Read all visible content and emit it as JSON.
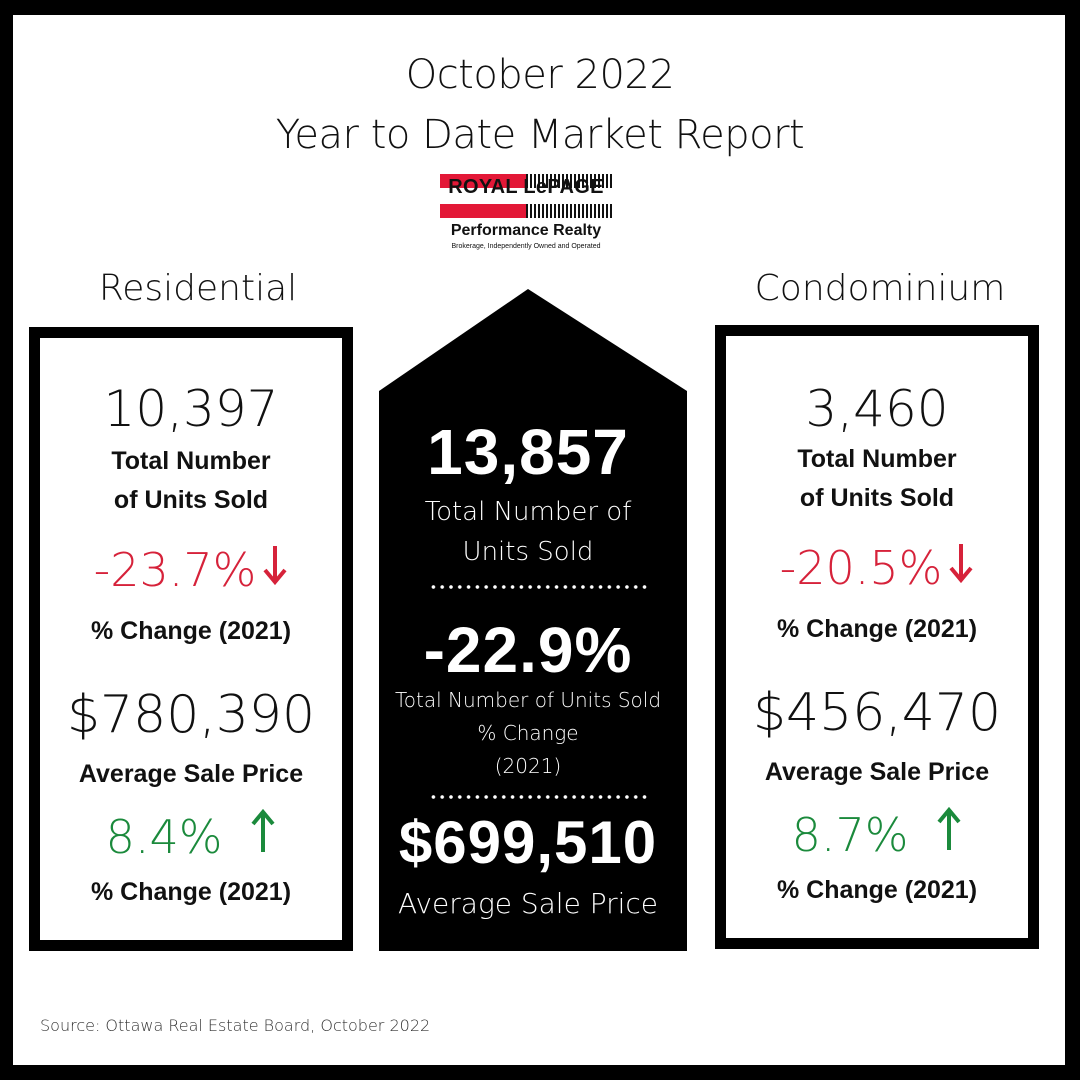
{
  "title": {
    "line1": "October 2022",
    "line2": "Year to Date Market Report"
  },
  "logo": {
    "name": "ROYAL LePAGE",
    "subtitle": "Performance Realty",
    "tagline": "Brokerage, Independently Owned and Operated"
  },
  "residential": {
    "heading": "Residential",
    "units_sold": "10,397",
    "units_label_line1": "Total Number",
    "units_label_line2": "of Units Sold",
    "units_change": "-23.7%",
    "units_change_label": "% Change (2021)",
    "avg_price": "$780,390",
    "avg_price_label": "Average Sale Price",
    "price_change": "8.4%",
    "price_change_label": "% Change (2021)"
  },
  "condominium": {
    "heading": "Condominium",
    "units_sold": "3,460",
    "units_label_line1": "Total Number",
    "units_label_line2": "of Units Sold",
    "units_change": "-20.5%",
    "units_change_label": "% Change (2021)",
    "avg_price": "$456,470",
    "avg_price_label": "Average Sale Price",
    "price_change": "8.7%",
    "price_change_label": "% Change (2021)"
  },
  "total": {
    "units_sold": "13,857",
    "units_label_line1": "Total Number of",
    "units_label_line2": "Units Sold",
    "units_change": "-22.9%",
    "change_label_line1": "Total Number of Units Sold",
    "change_label_line2": "% Change",
    "change_label_line3": "(2021)",
    "avg_price": "$699,510",
    "avg_price_label": "Average Sale Price"
  },
  "source": "Source: Ottawa Real Estate Board, October 2022",
  "colors": {
    "negative": "#d6223a",
    "positive": "#1b8a3c",
    "brand_red": "#e31837"
  },
  "icons": {
    "down": "arrow-down-icon",
    "up": "arrow-up-icon"
  }
}
